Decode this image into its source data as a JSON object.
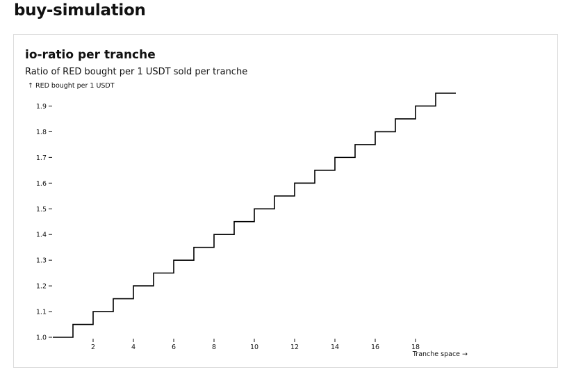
{
  "page": {
    "title": "buy-simulation"
  },
  "card": {
    "title": "io-ratio per tranche",
    "subtitle": "Ratio of RED bought per 1 USDT sold per tranche"
  },
  "chart_data": {
    "type": "line",
    "title": "io-ratio per tranche",
    "subtitle": "Ratio of RED bought per 1 USDT sold per tranche",
    "ylabel": "↑ RED bought per 1 USDT",
    "xlabel": "Tranche space →",
    "xlim": [
      0,
      20
    ],
    "ylim": [
      1.0,
      1.95
    ],
    "grid": false,
    "legend": "none",
    "line_color": "#000000",
    "x_ticks": [
      2,
      4,
      6,
      8,
      10,
      12,
      14,
      16,
      18
    ],
    "y_ticks": [
      1.0,
      1.1,
      1.2,
      1.3,
      1.4,
      1.5,
      1.6,
      1.7,
      1.8,
      1.9
    ],
    "x_tick_labels": [
      "2",
      "4",
      "6",
      "8",
      "10",
      "12",
      "14",
      "16",
      "18"
    ],
    "y_tick_labels": [
      "1.0",
      "1.1",
      "1.2",
      "1.3",
      "1.4",
      "1.5",
      "1.6",
      "1.7",
      "1.8",
      "1.9"
    ],
    "series": [
      {
        "step": "after",
        "x": [
          0,
          1,
          2,
          3,
          4,
          5,
          6,
          7,
          8,
          9,
          10,
          11,
          12,
          13,
          14,
          15,
          16,
          17,
          18,
          19,
          20
        ],
        "y": [
          1.0,
          1.05,
          1.1,
          1.15,
          1.2,
          1.25,
          1.3,
          1.35,
          1.4,
          1.45,
          1.5,
          1.55,
          1.6,
          1.65,
          1.7,
          1.75,
          1.8,
          1.85,
          1.9,
          1.95,
          1.95
        ]
      }
    ]
  }
}
